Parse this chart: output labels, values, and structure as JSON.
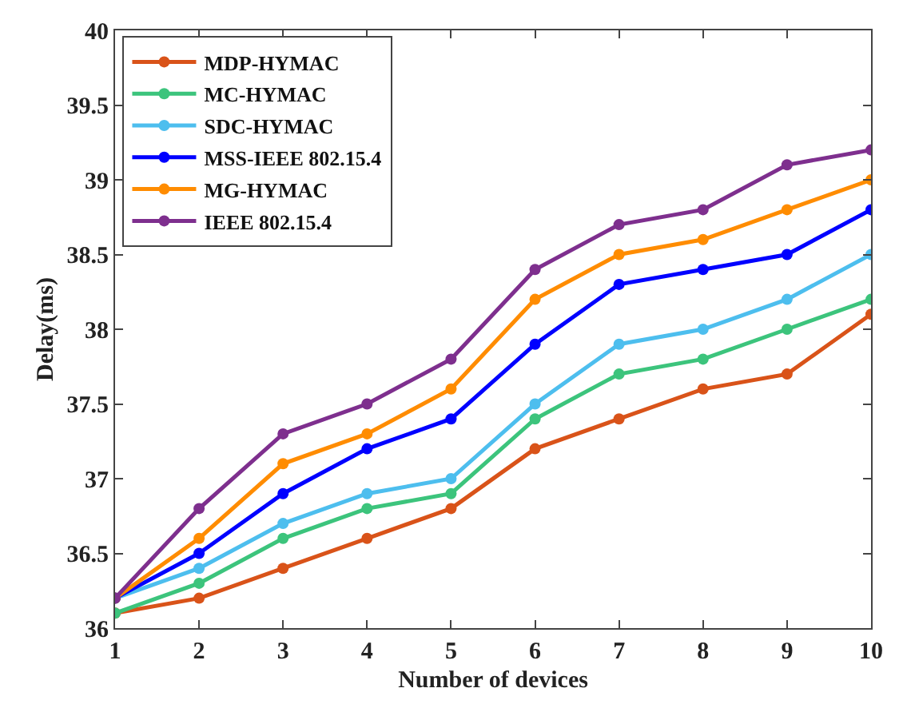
{
  "chart_data": {
    "type": "line",
    "xlabel": "Number of devices",
    "ylabel": "Delay(ms)",
    "x": [
      1,
      2,
      3,
      4,
      5,
      6,
      7,
      8,
      9,
      10
    ],
    "series": [
      {
        "name": "MDP-HYMAC",
        "color": "#d95319",
        "values": [
          36.1,
          36.2,
          36.4,
          36.6,
          36.8,
          37.2,
          37.4,
          37.6,
          37.7,
          38.1
        ]
      },
      {
        "name": "MC-HYMAC",
        "color": "#3cc47c",
        "values": [
          36.1,
          36.3,
          36.6,
          36.8,
          36.9,
          37.4,
          37.7,
          37.8,
          38.0,
          38.2
        ]
      },
      {
        "name": "SDC-HYMAC",
        "color": "#4dbeee",
        "values": [
          36.2,
          36.4,
          36.7,
          36.9,
          37.0,
          37.5,
          37.9,
          38.0,
          38.2,
          38.5
        ]
      },
      {
        "name": "MSS-IEEE 802.15.4",
        "color": "#0000ff",
        "values": [
          36.2,
          36.5,
          36.9,
          37.2,
          37.4,
          37.9,
          38.3,
          38.4,
          38.5,
          38.8
        ]
      },
      {
        "name": "MG-HYMAC",
        "color": "#ff8c00",
        "values": [
          36.2,
          36.6,
          37.1,
          37.3,
          37.6,
          38.2,
          38.5,
          38.6,
          38.8,
          39.0
        ]
      },
      {
        "name": "IEEE 802.15.4",
        "color": "#7e2f8e",
        "values": [
          36.2,
          36.8,
          37.3,
          37.5,
          37.8,
          38.4,
          38.7,
          38.8,
          39.1,
          39.2
        ]
      }
    ],
    "xlim": [
      1,
      10
    ],
    "xticks": [
      1,
      2,
      3,
      4,
      5,
      6,
      7,
      8,
      9,
      10
    ],
    "ylim": [
      36,
      40
    ],
    "yticks": [
      36,
      36.5,
      37,
      37.5,
      38,
      38.5,
      39,
      39.5,
      40
    ],
    "legend": "top left",
    "marker": "circle",
    "line_style": "solid"
  }
}
